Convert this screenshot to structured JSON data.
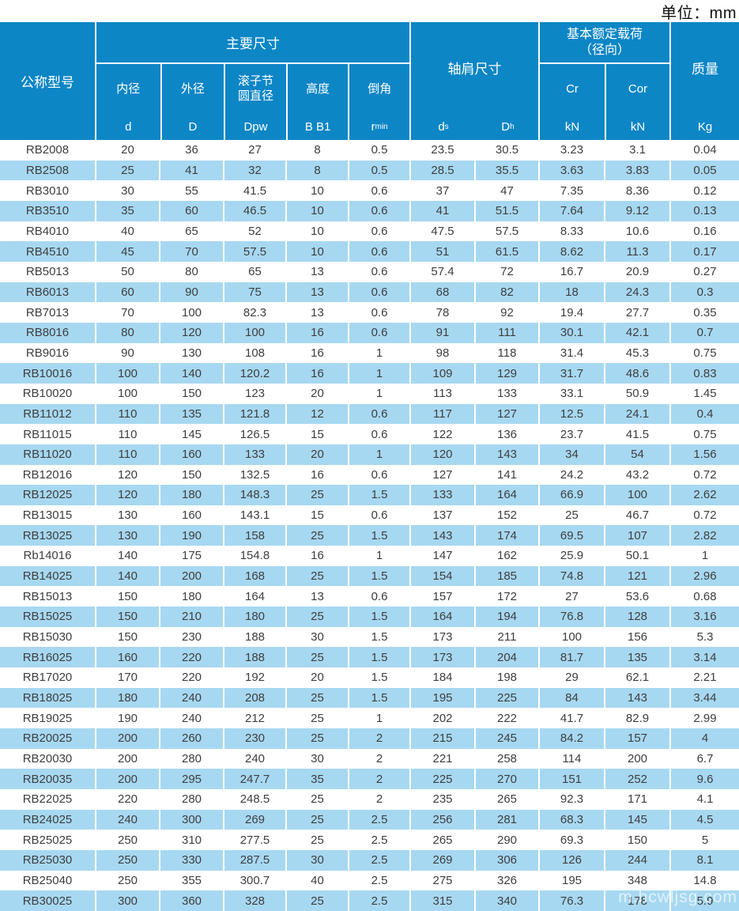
{
  "unit_label": "单位：mm",
  "watermark": "m.hcwljsg.com",
  "colors": {
    "header_bg": "#0d86c6",
    "stripe_bg": "#a7d8f1",
    "text": "#3e3e3e"
  },
  "header": {
    "model": "公称型号",
    "main_group": "主要尺寸",
    "main_cols": [
      {
        "name": "内径",
        "sym": "d"
      },
      {
        "name": "外径",
        "sym": "D"
      },
      {
        "name": "滚子节\n圆直径",
        "sym": "Dpw"
      },
      {
        "name": "高度",
        "sym": "B B1"
      },
      {
        "name": "倒角",
        "sym_main": "r",
        "sym_sub": "min"
      }
    ],
    "shoulder_group": "轴肩尺寸",
    "shoulder_cols": [
      {
        "main": "d",
        "sub": "s"
      },
      {
        "main": "D",
        "sub": "h"
      }
    ],
    "load_group": "基本额定载荷\n（径向）",
    "load_cols": [
      {
        "sym": "Cr",
        "unit": "kN"
      },
      {
        "sym": "Cor",
        "unit": "kN"
      }
    ],
    "mass": {
      "name": "质量",
      "unit": "Kg"
    }
  },
  "table": {
    "columns": [
      "公称型号",
      "内径 d",
      "外径 D",
      "滚子节圆直径 Dpw",
      "高度 B B1",
      "倒角 rmin",
      "轴肩尺寸 ds",
      "轴肩尺寸 Dh",
      "Cr kN",
      "Cor kN",
      "质量 Kg"
    ],
    "rows": [
      [
        "RB2008",
        "20",
        "36",
        "27",
        "8",
        "0.5",
        "23.5",
        "30.5",
        "3.23",
        "3.1",
        "0.04"
      ],
      [
        "RB2508",
        "25",
        "41",
        "32",
        "8",
        "0.5",
        "28.5",
        "35.5",
        "3.63",
        "3.83",
        "0.05"
      ],
      [
        "RB3010",
        "30",
        "55",
        "41.5",
        "10",
        "0.6",
        "37",
        "47",
        "7.35",
        "8.36",
        "0.12"
      ],
      [
        "RB3510",
        "35",
        "60",
        "46.5",
        "10",
        "0.6",
        "41",
        "51.5",
        "7.64",
        "9.12",
        "0.13"
      ],
      [
        "RB4010",
        "40",
        "65",
        "52",
        "10",
        "0.6",
        "47.5",
        "57.5",
        "8.33",
        "10.6",
        "0.16"
      ],
      [
        "RB4510",
        "45",
        "70",
        "57.5",
        "10",
        "0.6",
        "51",
        "61.5",
        "8.62",
        "11.3",
        "0.17"
      ],
      [
        "RB5013",
        "50",
        "80",
        "65",
        "13",
        "0.6",
        "57.4",
        "72",
        "16.7",
        "20.9",
        "0.27"
      ],
      [
        "RB6013",
        "60",
        "90",
        "75",
        "13",
        "0.6",
        "68",
        "82",
        "18",
        "24.3",
        "0.3"
      ],
      [
        "RB7013",
        "70",
        "100",
        "82.3",
        "13",
        "0.6",
        "78",
        "92",
        "19.4",
        "27.7",
        "0.35"
      ],
      [
        "RB8016",
        "80",
        "120",
        "100",
        "16",
        "0.6",
        "91",
        "111",
        "30.1",
        "42.1",
        "0.7"
      ],
      [
        "RB9016",
        "90",
        "130",
        "108",
        "16",
        "1",
        "98",
        "118",
        "31.4",
        "45.3",
        "0.75"
      ],
      [
        "RB10016",
        "100",
        "140",
        "120.2",
        "16",
        "1",
        "109",
        "129",
        "31.7",
        "48.6",
        "0.83"
      ],
      [
        "RB10020",
        "100",
        "150",
        "123",
        "20",
        "1",
        "113",
        "133",
        "33.1",
        "50.9",
        "1.45"
      ],
      [
        "RB11012",
        "110",
        "135",
        "121.8",
        "12",
        "0.6",
        "117",
        "127",
        "12.5",
        "24.1",
        "0.4"
      ],
      [
        "RB11015",
        "110",
        "145",
        "126.5",
        "15",
        "0.6",
        "122",
        "136",
        "23.7",
        "41.5",
        "0.75"
      ],
      [
        "RB11020",
        "110",
        "160",
        "133",
        "20",
        "1",
        "120",
        "143",
        "34",
        "54",
        "1.56"
      ],
      [
        "RB12016",
        "120",
        "150",
        "132.5",
        "16",
        "0.6",
        "127",
        "141",
        "24.2",
        "43.2",
        "0.72"
      ],
      [
        "RB12025",
        "120",
        "180",
        "148.3",
        "25",
        "1.5",
        "133",
        "164",
        "66.9",
        "100",
        "2.62"
      ],
      [
        "RB13015",
        "130",
        "160",
        "143.1",
        "15",
        "0.6",
        "137",
        "152",
        "25",
        "46.7",
        "0.72"
      ],
      [
        "RB13025",
        "130",
        "190",
        "158",
        "25",
        "1.5",
        "143",
        "174",
        "69.5",
        "107",
        "2.82"
      ],
      [
        "Rb14016",
        "140",
        "175",
        "154.8",
        "16",
        "1",
        "147",
        "162",
        "25.9",
        "50.1",
        "1"
      ],
      [
        "RB14025",
        "140",
        "200",
        "168",
        "25",
        "1.5",
        "154",
        "185",
        "74.8",
        "121",
        "2.96"
      ],
      [
        "RB15013",
        "150",
        "180",
        "164",
        "13",
        "0.6",
        "157",
        "172",
        "27",
        "53.6",
        "0.68"
      ],
      [
        "RB15025",
        "150",
        "210",
        "180",
        "25",
        "1.5",
        "164",
        "194",
        "76.8",
        "128",
        "3.16"
      ],
      [
        "RB15030",
        "150",
        "230",
        "188",
        "30",
        "1.5",
        "173",
        "211",
        "100",
        "156",
        "5.3"
      ],
      [
        "RB16025",
        "160",
        "220",
        "188",
        "25",
        "1.5",
        "173",
        "204",
        "81.7",
        "135",
        "3.14"
      ],
      [
        "RB17020",
        "170",
        "220",
        "192",
        "20",
        "1.5",
        "184",
        "198",
        "29",
        "62.1",
        "2.21"
      ],
      [
        "RB18025",
        "180",
        "240",
        "208",
        "25",
        "1.5",
        "195",
        "225",
        "84",
        "143",
        "3.44"
      ],
      [
        "RB19025",
        "190",
        "240",
        "212",
        "25",
        "1",
        "202",
        "222",
        "41.7",
        "82.9",
        "2.99"
      ],
      [
        "RB20025",
        "200",
        "260",
        "230",
        "25",
        "2",
        "215",
        "245",
        "84.2",
        "157",
        "4"
      ],
      [
        "RB20030",
        "200",
        "280",
        "240",
        "30",
        "2",
        "221",
        "258",
        "114",
        "200",
        "6.7"
      ],
      [
        "RB20035",
        "200",
        "295",
        "247.7",
        "35",
        "2",
        "225",
        "270",
        "151",
        "252",
        "9.6"
      ],
      [
        "RB22025",
        "220",
        "280",
        "248.5",
        "25",
        "2",
        "235",
        "265",
        "92.3",
        "171",
        "4.1"
      ],
      [
        "RB24025",
        "240",
        "300",
        "269",
        "25",
        "2.5",
        "256",
        "281",
        "68.3",
        "145",
        "4.5"
      ],
      [
        "RB25025",
        "250",
        "310",
        "277.5",
        "25",
        "2.5",
        "265",
        "290",
        "69.3",
        "150",
        "5"
      ],
      [
        "RB25030",
        "250",
        "330",
        "287.5",
        "30",
        "2.5",
        "269",
        "306",
        "126",
        "244",
        "8.1"
      ],
      [
        "RB25040",
        "250",
        "355",
        "300.7",
        "40",
        "2.5",
        "275",
        "326",
        "195",
        "348",
        "14.8"
      ],
      [
        "RB30025",
        "300",
        "360",
        "328",
        "25",
        "2.5",
        "315",
        "340",
        "76.3",
        "178",
        "5.9"
      ]
    ]
  }
}
